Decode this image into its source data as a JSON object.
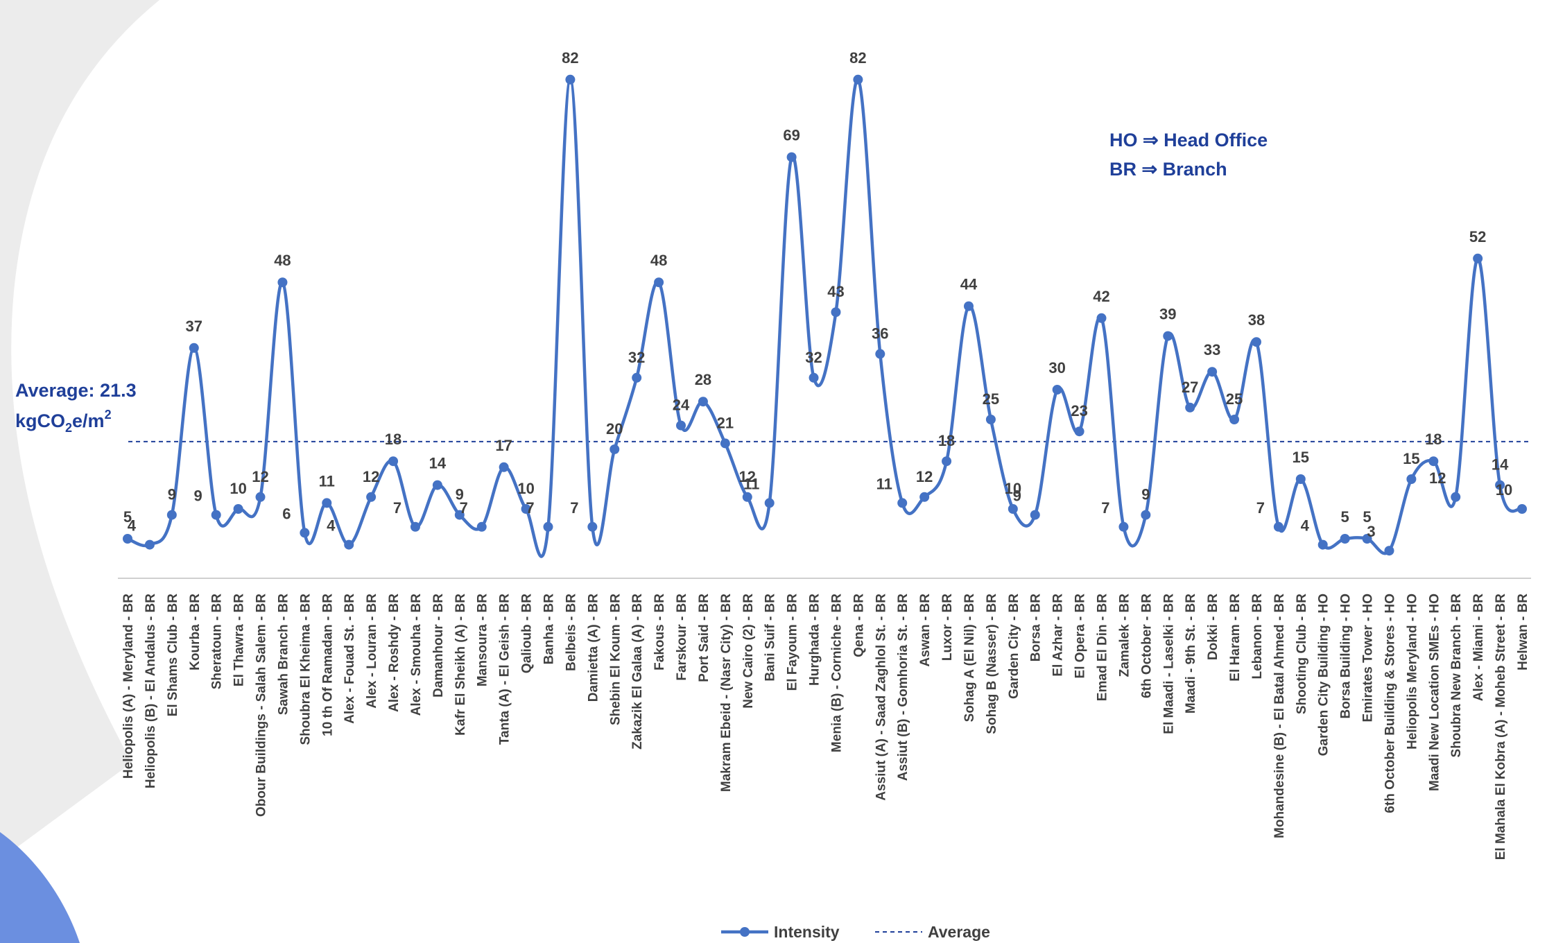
{
  "chart_data": {
    "type": "line",
    "categories": [
      "Heliopolis (A) - Meryland - BR",
      "Heliopolis (B) - El Andalus - BR",
      "El Shams Club - BR",
      "Kourba - BR",
      "Sheratoun - BR",
      "El Thawra - BR",
      "Obour Buildings - Salah Salem - BR",
      "Sawah Branch - BR",
      "Shoubra El Kheima - BR",
      "10 th Of Ramadan - BR",
      "Alex - Fouad St. - BR",
      "Alex - Louran - BR",
      "Alex - Roshdy - BR",
      "Alex - Smouha - BR",
      "Damanhour - BR",
      "Kafr El Sheikh (A) - BR",
      "Mansoura - BR",
      "Tanta (A) - El Geish - BR",
      "Qalioub - BR",
      "Banha - BR",
      "Belbeis - BR",
      "Damietta (A) - BR",
      "Shebin El Koum - BR",
      "Zakazik El Galaa (A) - BR",
      "Fakous - BR",
      "Farskour - BR",
      "Port Said - BR",
      "Makram Ebeid - (Nasr City) - BR",
      "New Cairo (2) - BR",
      "Bani Suif - BR",
      "El Fayoum - BR",
      "Hurghada - BR",
      "Menia (B) - Corniche - BR",
      "Qena - BR",
      "Assiut (A) - Saad Zaghlol St. - BR",
      "Assiut (B) - Gomhoria St. - BR",
      "Aswan - BR",
      "Luxor - BR",
      "Sohag A (El Nil) - BR",
      "Sohag B (Nasser) - BR",
      "Garden City - BR",
      "Borsa - BR",
      "El Azhar - BR",
      "El Opera - BR",
      "Emad El Din - BR",
      "Zamalek - BR",
      "6th October - BR",
      "El Maadi - Laselki - BR",
      "Maadi - 9th St. - BR",
      "Dokki - BR",
      "El Haram - BR",
      "Lebanon - BR",
      "Mohandesine (B) - El Batal Ahmed - BR",
      "Shooting Club - BR",
      "Garden City Building - HO",
      "Borsa Building - HO",
      "Emirates Tower - HO",
      "6th October Building & Stores - HO",
      "Heliopolis Meryland - HO",
      "Maadi New Location SMEs - HO",
      "Shoubra New Branch - BR",
      "Alex - Miami - BR",
      "El Mahala El Kobra (A) - Moheb Street - BR",
      "Helwan - BR"
    ],
    "series": [
      {
        "name": "Intensity",
        "values": [
          5,
          4,
          9,
          37,
          9,
          10,
          12,
          48,
          6,
          11,
          4,
          12,
          18,
          7,
          14,
          9,
          7,
          17,
          10,
          7,
          82,
          7,
          20,
          32,
          48,
          24,
          28,
          21,
          12,
          11,
          69,
          32,
          43,
          82,
          36,
          11,
          12,
          18,
          44,
          25,
          10,
          9,
          30,
          23,
          42,
          7,
          9,
          39,
          27,
          33,
          25,
          38,
          7,
          15,
          4,
          5,
          5,
          3,
          15,
          18,
          12,
          52,
          14,
          10
        ]
      },
      {
        "name": "Average",
        "value": 21.3
      }
    ],
    "ylim": [
      0,
      90
    ],
    "grid": false,
    "legend": "bottom",
    "average_label": "Average: 21.3",
    "average_unit": "kgCO",
    "average_unit_sub": "2",
    "average_unit_tail": "e/m",
    "average_unit_sup": "2",
    "notes": [
      "HO ⇒ Head Office",
      "BR ⇒ Branch"
    ],
    "colors": {
      "line": "#4472c4",
      "average": "#1f3f99",
      "labels": "#404040",
      "note": "#1f3f99"
    }
  }
}
